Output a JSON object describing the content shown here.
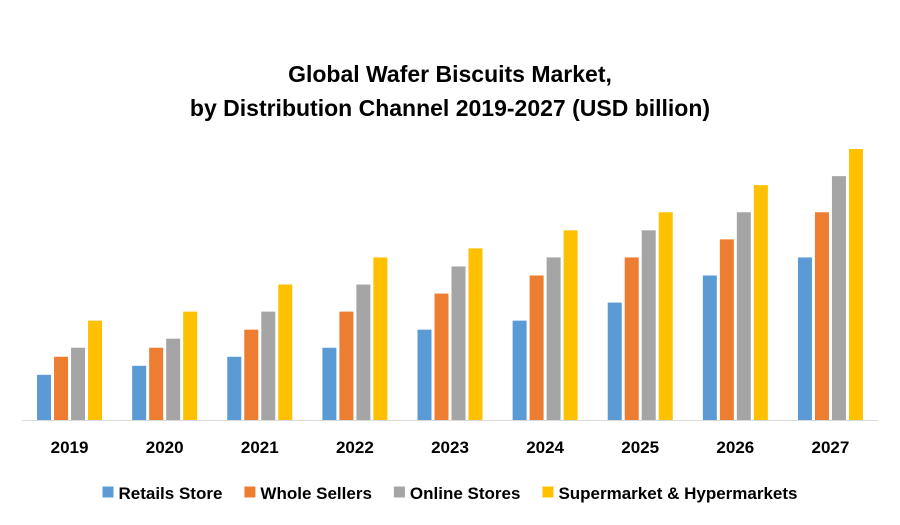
{
  "chart_data": {
    "type": "bar",
    "title": [
      "Global Wafer Biscuits Market,",
      "by Distribution Channel 2019-2027 (USD billion)"
    ],
    "xlabel": "",
    "ylabel": "",
    "ylim": [
      0,
      31
    ],
    "grid": false,
    "legend_position": "bottom",
    "categories": [
      "2019",
      "2020",
      "2021",
      "2022",
      "2023",
      "2024",
      "2025",
      "2026",
      "2027"
    ],
    "series": [
      {
        "name": "Retails Store",
        "color": "#5B9BD5",
        "values": [
          5,
          6,
          7,
          8,
          10,
          11,
          13,
          16,
          18
        ]
      },
      {
        "name": "Whole Sellers",
        "color": "#ED7D31",
        "values": [
          7,
          8,
          10,
          12,
          14,
          16,
          18,
          20,
          23
        ]
      },
      {
        "name": "Online Stores",
        "color": "#A5A5A5",
        "values": [
          8,
          9,
          12,
          15,
          17,
          18,
          21,
          23,
          27
        ]
      },
      {
        "name": "Supermarket & Hypermarkets",
        "color": "#FFC000",
        "values": [
          11,
          12,
          15,
          18,
          19,
          21,
          23,
          26,
          30
        ]
      }
    ]
  }
}
